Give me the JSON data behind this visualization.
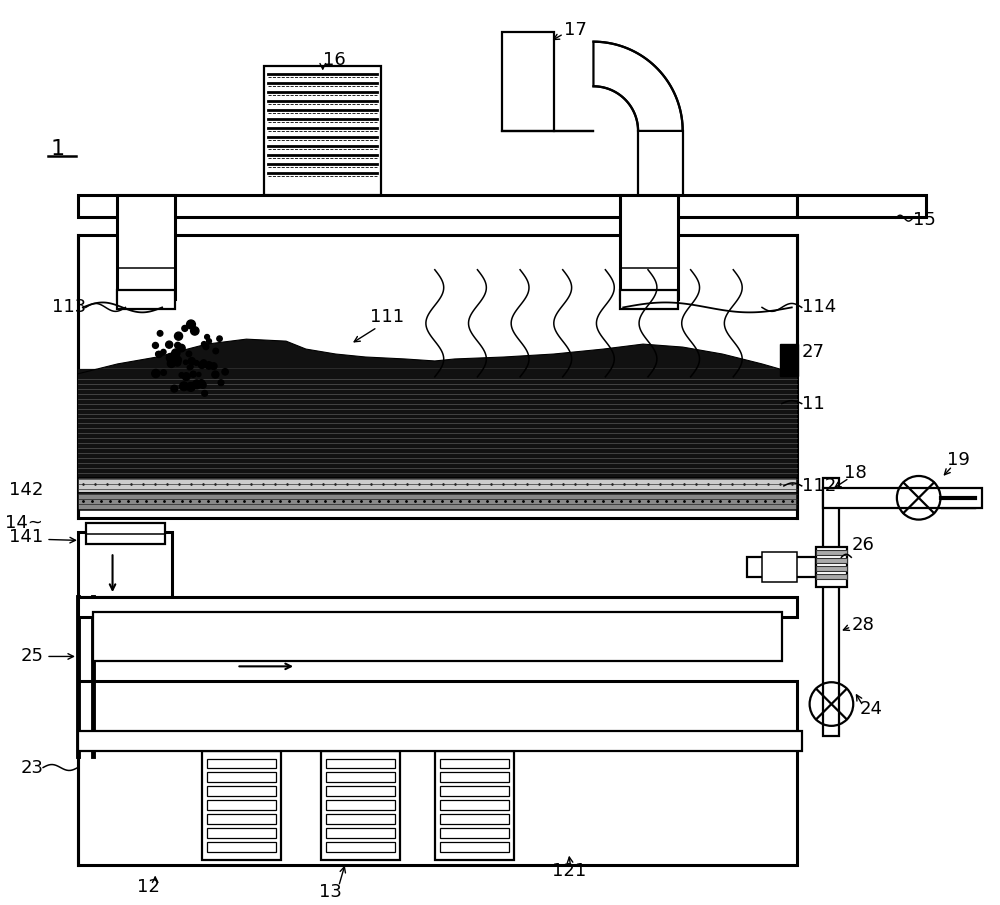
{
  "bg_color": "#ffffff",
  "figsize": [
    10.0,
    9.05
  ],
  "dpi": 100,
  "lw_main": 2.2,
  "lw_med": 1.6,
  "lw_thin": 1.1,
  "fs": 13
}
